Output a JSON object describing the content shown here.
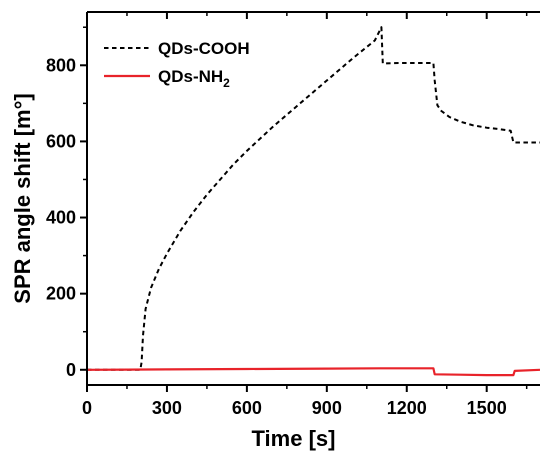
{
  "chart_data": {
    "type": "line",
    "title": "",
    "xlabel": "Time [s]",
    "ylabel": "SPR angle shift [m°]",
    "xlim": [
      0,
      1700
    ],
    "ylim": [
      -40,
      940
    ],
    "x_ticks": [
      0,
      300,
      600,
      900,
      1200,
      1500
    ],
    "y_ticks": [
      0,
      200,
      400,
      600,
      800
    ],
    "legend_position": "top-left",
    "grid": false,
    "series": [
      {
        "name": "QDs-COOH",
        "legend_main": "QDs-COOH",
        "legend_sub": "",
        "color": "#000000",
        "style": "dashed",
        "points": [
          [
            0,
            0
          ],
          [
            200,
            0
          ],
          [
            205,
            20
          ],
          [
            210,
            90
          ],
          [
            220,
            160
          ],
          [
            240,
            215
          ],
          [
            270,
            265
          ],
          [
            300,
            305
          ],
          [
            350,
            365
          ],
          [
            400,
            415
          ],
          [
            450,
            460
          ],
          [
            500,
            500
          ],
          [
            550,
            540
          ],
          [
            600,
            575
          ],
          [
            700,
            640
          ],
          [
            800,
            700
          ],
          [
            900,
            760
          ],
          [
            1000,
            820
          ],
          [
            1080,
            865
          ],
          [
            1105,
            900
          ],
          [
            1110,
            805
          ],
          [
            1180,
            806
          ],
          [
            1300,
            806
          ],
          [
            1305,
            760
          ],
          [
            1315,
            695
          ],
          [
            1330,
            680
          ],
          [
            1360,
            664
          ],
          [
            1400,
            652
          ],
          [
            1450,
            642
          ],
          [
            1500,
            636
          ],
          [
            1550,
            632
          ],
          [
            1590,
            628
          ],
          [
            1600,
            597
          ],
          [
            1650,
            597
          ],
          [
            1700,
            597
          ]
        ]
      },
      {
        "name": "QDs-NH2",
        "legend_main": "QDs-NH",
        "legend_sub": "2",
        "color": "#e8232a",
        "style": "solid",
        "points": [
          [
            0,
            0
          ],
          [
            300,
            1
          ],
          [
            600,
            2
          ],
          [
            900,
            3
          ],
          [
            1100,
            4
          ],
          [
            1300,
            4
          ],
          [
            1305,
            -12
          ],
          [
            1400,
            -13
          ],
          [
            1500,
            -14
          ],
          [
            1600,
            -14
          ],
          [
            1605,
            -3
          ],
          [
            1700,
            0
          ]
        ]
      }
    ]
  }
}
